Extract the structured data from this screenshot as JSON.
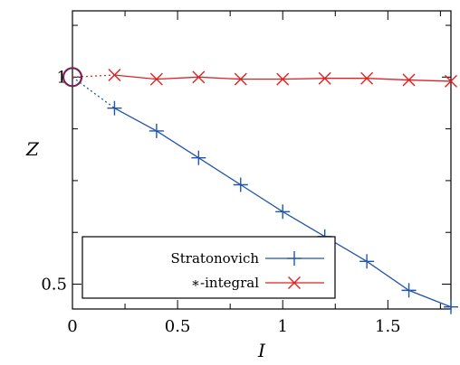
{
  "chart_data": {
    "type": "line",
    "xlabel": "I",
    "ylabel": "Z",
    "xlim": [
      0,
      1.8
    ],
    "ylim": [
      0.44,
      1.16
    ],
    "xticks": [
      {
        "value": 0,
        "label": "0"
      },
      {
        "value": 0.5,
        "label": "0.5"
      },
      {
        "value": 1,
        "label": "1"
      },
      {
        "value": 1.5,
        "label": "1.5"
      }
    ],
    "yticks": [
      {
        "value": 0.5,
        "label": "0.5"
      },
      {
        "value": 1,
        "label": "1"
      }
    ],
    "grid": false,
    "legend": "bottom-left",
    "series": [
      {
        "name": "Stratonovich",
        "color": "#2255aa",
        "marker": "plus",
        "x": [
          0.2,
          0.4,
          0.6,
          0.8,
          1.0,
          1.2,
          1.4,
          1.6,
          1.8
        ],
        "y": [
          0.925,
          0.87,
          0.805,
          0.74,
          0.675,
          0.615,
          0.555,
          0.485,
          0.445
        ]
      },
      {
        "name": "∗-integral",
        "color": "#dd2222",
        "marker": "cross",
        "x": [
          0.2,
          0.4,
          0.6,
          0.8,
          1.0,
          1.2,
          1.4,
          1.6,
          1.8
        ],
        "y": [
          1.005,
          0.995,
          1.0,
          0.995,
          0.995,
          0.997,
          0.997,
          0.993,
          0.99
        ]
      }
    ],
    "start_point": {
      "x": 0,
      "y": 1
    }
  }
}
